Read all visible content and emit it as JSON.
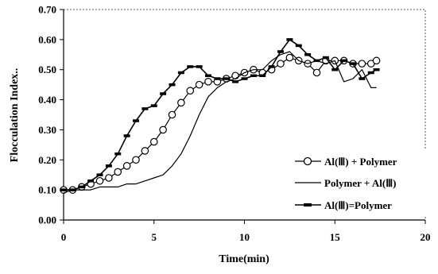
{
  "chart_data": {
    "type": "line",
    "title": "",
    "xlabel": "Time(min)",
    "ylabel": "Flocculation Index..",
    "xlim": [
      0,
      20
    ],
    "ylim": [
      0,
      0.7
    ],
    "xticks": [
      "0",
      "5",
      "10",
      "15",
      "20"
    ],
    "yticks": [
      "0.00",
      "0.10",
      "0.20",
      "0.30",
      "0.40",
      "0.50",
      "0.60",
      "0.70"
    ],
    "grid": false,
    "legend_position": "right",
    "series": [
      {
        "name": "Al(Ⅲ) + Polymer",
        "marker": "circle",
        "x": [
          0,
          0.5,
          1,
          1.5,
          2,
          2.5,
          3,
          3.5,
          4,
          4.5,
          5,
          5.5,
          6,
          6.5,
          7,
          7.5,
          8,
          8.5,
          9,
          9.5,
          10,
          10.5,
          11,
          11.5,
          12,
          12.5,
          13,
          13.5,
          14,
          14.5,
          15,
          15.5,
          16,
          16.5,
          17,
          17.3
        ],
        "values": [
          0.1,
          0.1,
          0.11,
          0.12,
          0.13,
          0.14,
          0.16,
          0.18,
          0.2,
          0.23,
          0.26,
          0.3,
          0.35,
          0.39,
          0.43,
          0.45,
          0.46,
          0.46,
          0.47,
          0.48,
          0.49,
          0.5,
          0.49,
          0.5,
          0.52,
          0.54,
          0.53,
          0.52,
          0.49,
          0.53,
          0.53,
          0.53,
          0.52,
          0.52,
          0.52,
          0.53
        ]
      },
      {
        "name": "Polymer + Al(Ⅲ)",
        "marker": "none",
        "x": [
          0,
          0.5,
          1,
          1.5,
          2,
          2.5,
          3,
          3.5,
          4,
          4.5,
          5,
          5.5,
          6,
          6.5,
          7,
          7.5,
          8,
          8.5,
          9,
          9.5,
          10,
          10.5,
          11,
          11.5,
          12,
          12.5,
          13,
          13.5,
          14,
          14.5,
          15,
          15.5,
          16,
          16.5,
          17,
          17.3
        ],
        "values": [
          0.09,
          0.1,
          0.1,
          0.1,
          0.11,
          0.11,
          0.11,
          0.12,
          0.12,
          0.13,
          0.14,
          0.15,
          0.18,
          0.22,
          0.28,
          0.35,
          0.41,
          0.44,
          0.46,
          0.47,
          0.49,
          0.5,
          0.5,
          0.53,
          0.55,
          0.56,
          0.53,
          0.52,
          0.53,
          0.52,
          0.53,
          0.46,
          0.47,
          0.5,
          0.44,
          0.44
        ]
      },
      {
        "name": "Al(Ⅲ)=Polymer",
        "marker": "dash",
        "x": [
          0,
          0.5,
          1,
          1.5,
          2,
          2.5,
          3,
          3.5,
          4,
          4.5,
          5,
          5.5,
          6,
          6.5,
          7,
          7.5,
          8,
          8.5,
          9,
          9.5,
          10,
          10.5,
          11,
          11.5,
          12,
          12.5,
          13,
          13.5,
          14,
          14.5,
          15,
          15.5,
          16,
          16.5,
          17,
          17.3
        ],
        "values": [
          0.1,
          0.1,
          0.11,
          0.13,
          0.15,
          0.18,
          0.22,
          0.28,
          0.33,
          0.37,
          0.38,
          0.42,
          0.45,
          0.49,
          0.51,
          0.51,
          0.48,
          0.47,
          0.47,
          0.46,
          0.47,
          0.48,
          0.48,
          0.51,
          0.56,
          0.6,
          0.58,
          0.55,
          0.53,
          0.54,
          0.5,
          0.53,
          0.52,
          0.47,
          0.49,
          0.5
        ]
      }
    ]
  }
}
